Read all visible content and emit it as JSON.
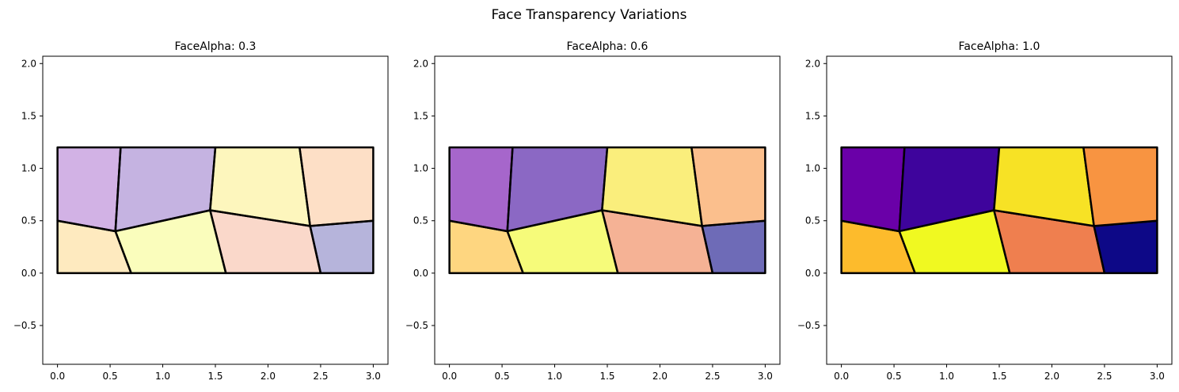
{
  "figure": {
    "title": "Face Transparency Variations"
  },
  "chart_data": [
    {
      "type": "polygon-mesh",
      "title": "FaceAlpha: 0.3",
      "face_alpha": 0.3,
      "xlim": [
        -0.14,
        3.14
      ],
      "ylim": [
        -0.87,
        2.07
      ],
      "xticks": [
        "0.0",
        "0.5",
        "1.0",
        "1.5",
        "2.0",
        "2.5",
        "3.0"
      ],
      "yticks": [
        "−0.5",
        "0.0",
        "0.5",
        "1.0",
        "1.5",
        "2.0"
      ],
      "edge_color": "#000000"
    },
    {
      "type": "polygon-mesh",
      "title": "FaceAlpha: 0.6",
      "face_alpha": 0.6,
      "xlim": [
        -0.14,
        3.14
      ],
      "ylim": [
        -0.87,
        2.07
      ],
      "xticks": [
        "0.0",
        "0.5",
        "1.0",
        "1.5",
        "2.0",
        "2.5",
        "3.0"
      ],
      "yticks": [
        "−0.5",
        "0.0",
        "0.5",
        "1.0",
        "1.5",
        "2.0"
      ],
      "edge_color": "#000000"
    },
    {
      "type": "polygon-mesh",
      "title": "FaceAlpha: 1.0",
      "face_alpha": 1.0,
      "xlim": [
        -0.14,
        3.14
      ],
      "ylim": [
        -0.87,
        2.07
      ],
      "xticks": [
        "0.0",
        "0.5",
        "1.0",
        "1.5",
        "2.0",
        "2.5",
        "3.0"
      ],
      "yticks": [
        "−0.5",
        "0.0",
        "0.5",
        "1.0",
        "1.5",
        "2.0"
      ],
      "edge_color": "#000000"
    }
  ],
  "mesh": {
    "vertices": [
      [
        0,
        0
      ],
      [
        0.7,
        0
      ],
      [
        1.6,
        0
      ],
      [
        2.5,
        0
      ],
      [
        3.0,
        0
      ],
      [
        0,
        0.5
      ],
      [
        0.55,
        0.4
      ],
      [
        1.45,
        0.6
      ],
      [
        2.4,
        0.45
      ],
      [
        3.0,
        0.5
      ],
      [
        0,
        1.2
      ],
      [
        0.6,
        1.2
      ],
      [
        1.5,
        1.2
      ],
      [
        2.3,
        1.2
      ],
      [
        3.0,
        1.2
      ]
    ],
    "faces": [
      {
        "vertices": [
          0,
          1,
          6,
          5
        ],
        "color": "#fdbb2c"
      },
      {
        "vertices": [
          1,
          2,
          7,
          6
        ],
        "color": "#f0f921"
      },
      {
        "vertices": [
          2,
          3,
          8,
          7
        ],
        "color": "#ef7f4f"
      },
      {
        "vertices": [
          3,
          4,
          9,
          8
        ],
        "color": "#0d0887"
      },
      {
        "vertices": [
          5,
          6,
          11,
          10
        ],
        "color": "#6a00a8"
      },
      {
        "vertices": [
          6,
          7,
          12,
          11
        ],
        "color": "#3e049c"
      },
      {
        "vertices": [
          7,
          8,
          13,
          12
        ],
        "color": "#f7e225"
      },
      {
        "vertices": [
          8,
          9,
          14,
          13
        ],
        "color": "#f89441"
      }
    ]
  }
}
